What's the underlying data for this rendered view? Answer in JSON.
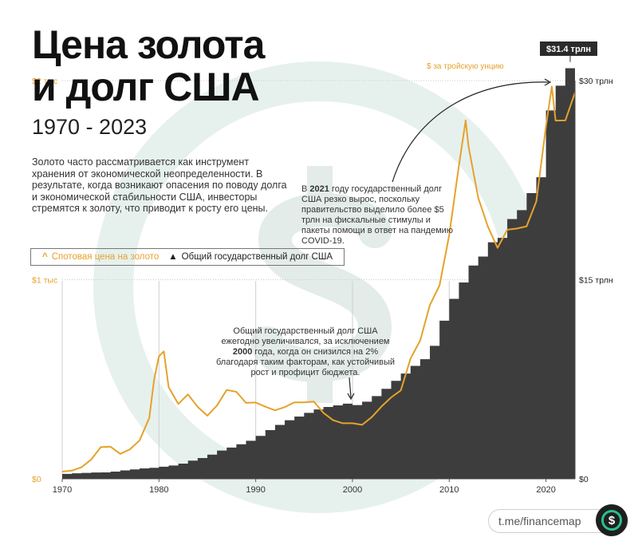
{
  "header": {
    "title_line1": "Цена золота",
    "title_line2": "и долг США",
    "years": "1970 - 2023"
  },
  "description": "Золото часто рассматривается как инструмент хранения от экономической неопределенности. В результате, когда возникают опасения по поводу долга и экономической стабильности США, инвесторы стремятся к золоту, что приводит к росту его цены.",
  "legend": {
    "gold_symbol": "^",
    "gold_label": "Спотовая цена на золото",
    "debt_symbol": "▲",
    "debt_label": "Общий государственный долг США"
  },
  "annotations": {
    "covid_prefix": "В ",
    "covid_year": "2021",
    "covid_text": " году государственный долг США резко вырос, поскольку правительство выделило более $5 трлн на фискальные стимулы и пакеты помощи в ответ на пандемию COVID-19.",
    "y2000_text_a": "Общий государственный долг США ежегодно увеличивался, за исключением ",
    "y2000_year": "2000",
    "y2000_text_b": " года, когда он снизился на 2% благодаря таким факторам, как устойчивый рост и профицит бюджета."
  },
  "brand": {
    "handle": "t.me/financemap",
    "logo_symbol": "$"
  },
  "colors": {
    "gold": "#e5a22b",
    "debt": "#3d3d3d",
    "watermark": "#e6f1ee"
  },
  "chart_data": {
    "type": "area",
    "x_ticks": [
      "1970",
      "1980",
      "1990",
      "2000",
      "2010",
      "2020"
    ],
    "x_range": [
      1970,
      2023
    ],
    "gold_axis": {
      "unit_label": "$ за тройскую унцию",
      "tick_labels": [
        "$0",
        "$1 тыс",
        "$2 тыс"
      ],
      "ticks": [
        0,
        1000,
        2000
      ],
      "range": [
        0,
        2000
      ]
    },
    "debt_axis": {
      "tick_labels": [
        "$0",
        "$15 трлн",
        "$30 трлн"
      ],
      "ticks": [
        0,
        15,
        30
      ],
      "range": [
        0,
        30
      ]
    },
    "max_label": "$31.4 трлн",
    "series": [
      {
        "name": "Спотовая цена на золото",
        "x": [
          1970,
          1971,
          1972,
          1973,
          1974,
          1975,
          1976,
          1977,
          1978,
          1979,
          1979.5,
          1980,
          1980.5,
          1981,
          1982,
          1983,
          1984,
          1985,
          1986,
          1987,
          1988,
          1989,
          1990,
          1991,
          1992,
          1993,
          1994,
          1995,
          1996,
          1997,
          1998,
          1999,
          2000,
          2001,
          2002,
          2003,
          2004,
          2005,
          2006,
          2007,
          2008,
          2009,
          2010,
          2011,
          2011.7,
          2012,
          2013,
          2014,
          2015,
          2016,
          2017,
          2018,
          2019,
          2020,
          2020.6,
          2021,
          2022,
          2023
        ],
        "y": [
          36,
          41,
          58,
          97,
          159,
          161,
          125,
          148,
          193,
          306,
          500,
          615,
          640,
          460,
          376,
          424,
          361,
          317,
          368,
          446,
          437,
          381,
          383,
          362,
          344,
          360,
          384,
          384,
          388,
          331,
          294,
          279,
          279,
          271,
          310,
          363,
          409,
          444,
          604,
          695,
          872,
          972,
          1225,
          1572,
          1800,
          1669,
          1411,
          1266,
          1160,
          1251,
          1257,
          1268,
          1393,
          1770,
          1970,
          1799,
          1800,
          1940
        ]
      },
      {
        "name": "Общий государственный долг США",
        "unit": "трлн $",
        "x": [
          1970,
          1971,
          1972,
          1973,
          1974,
          1975,
          1976,
          1977,
          1978,
          1979,
          1980,
          1981,
          1982,
          1983,
          1984,
          1985,
          1986,
          1987,
          1988,
          1989,
          1990,
          1991,
          1992,
          1993,
          1994,
          1995,
          1996,
          1997,
          1998,
          1999,
          2000,
          2001,
          2002,
          2003,
          2004,
          2005,
          2006,
          2007,
          2008,
          2009,
          2010,
          2011,
          2012,
          2013,
          2014,
          2015,
          2016,
          2017,
          2018,
          2019,
          2020,
          2021,
          2022,
          2023
        ],
        "y": [
          0.37,
          0.41,
          0.44,
          0.47,
          0.48,
          0.54,
          0.63,
          0.71,
          0.78,
          0.83,
          0.91,
          1.0,
          1.14,
          1.37,
          1.56,
          1.82,
          2.13,
          2.35,
          2.6,
          2.86,
          3.23,
          3.67,
          4.06,
          4.41,
          4.69,
          4.97,
          5.22,
          5.41,
          5.53,
          5.66,
          5.55,
          5.81,
          6.23,
          6.78,
          7.38,
          7.93,
          8.51,
          9.01,
          10.02,
          11.91,
          13.56,
          14.79,
          16.07,
          16.74,
          17.82,
          18.15,
          19.57,
          20.24,
          21.52,
          22.72,
          27.75,
          29.62,
          30.93,
          31.4
        ]
      }
    ]
  }
}
